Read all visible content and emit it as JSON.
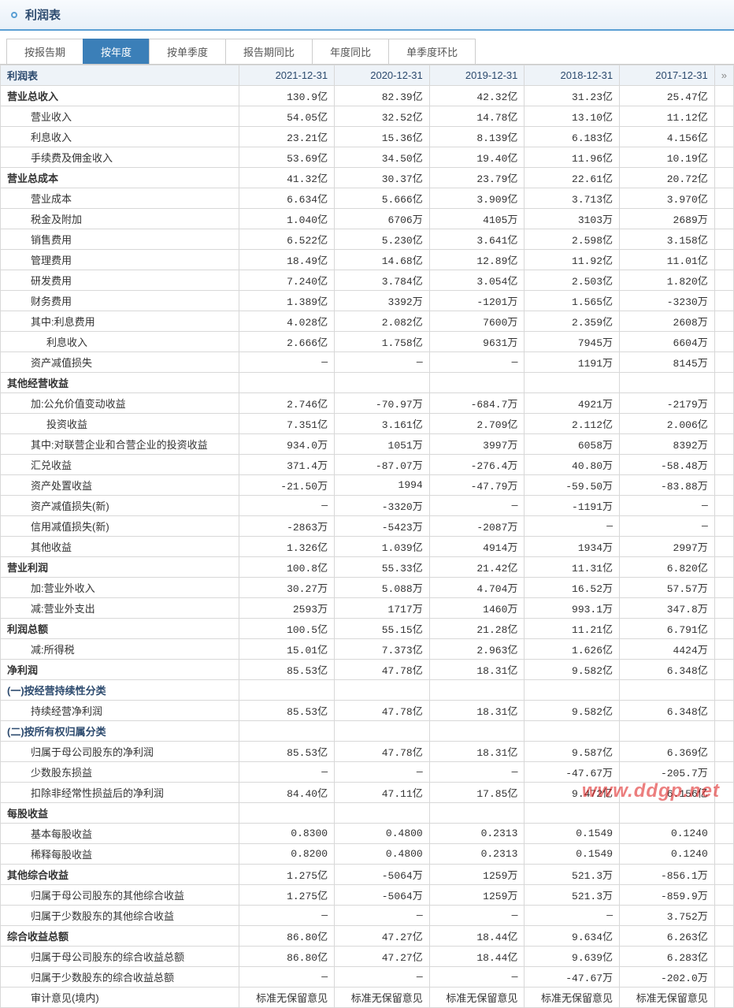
{
  "page_title": "利润表",
  "tabs": [
    "按报告期",
    "按年度",
    "按单季度",
    "报告期同比",
    "年度同比",
    "单季度环比"
  ],
  "tab_active_index": 1,
  "table_header_label": "利润表",
  "columns": [
    "2021-12-31",
    "2020-12-31",
    "2019-12-31",
    "2018-12-31",
    "2017-12-31"
  ],
  "watermark": "www.ddgp.net",
  "rows": [
    {
      "k": "bold",
      "l": "营业总收入",
      "v": [
        "130.9亿",
        "82.39亿",
        "42.32亿",
        "31.23亿",
        "25.47亿"
      ]
    },
    {
      "k": "",
      "i": 1,
      "l": "营业收入",
      "v": [
        "54.05亿",
        "32.52亿",
        "14.78亿",
        "13.10亿",
        "11.12亿"
      ]
    },
    {
      "k": "",
      "i": 1,
      "l": "利息收入",
      "v": [
        "23.21亿",
        "15.36亿",
        "8.139亿",
        "6.183亿",
        "4.156亿"
      ]
    },
    {
      "k": "",
      "i": 1,
      "l": "手续费及佣金收入",
      "v": [
        "53.69亿",
        "34.50亿",
        "19.40亿",
        "11.96亿",
        "10.19亿"
      ]
    },
    {
      "k": "bold",
      "l": "营业总成本",
      "v": [
        "41.32亿",
        "30.37亿",
        "23.79亿",
        "22.61亿",
        "20.72亿"
      ]
    },
    {
      "k": "",
      "i": 1,
      "l": "营业成本",
      "v": [
        "6.634亿",
        "5.666亿",
        "3.909亿",
        "3.713亿",
        "3.970亿"
      ]
    },
    {
      "k": "",
      "i": 1,
      "l": "税金及附加",
      "v": [
        "1.040亿",
        "6706万",
        "4105万",
        "3103万",
        "2689万"
      ]
    },
    {
      "k": "",
      "i": 1,
      "l": "销售费用",
      "v": [
        "6.522亿",
        "5.230亿",
        "3.641亿",
        "2.598亿",
        "3.158亿"
      ]
    },
    {
      "k": "",
      "i": 1,
      "l": "管理费用",
      "v": [
        "18.49亿",
        "14.68亿",
        "12.89亿",
        "11.92亿",
        "11.01亿"
      ]
    },
    {
      "k": "",
      "i": 1,
      "l": "研发费用",
      "v": [
        "7.240亿",
        "3.784亿",
        "3.054亿",
        "2.503亿",
        "1.820亿"
      ]
    },
    {
      "k": "",
      "i": 1,
      "l": "财务费用",
      "v": [
        "1.389亿",
        "3392万",
        "-1201万",
        "1.565亿",
        "-3230万"
      ]
    },
    {
      "k": "",
      "i": 1,
      "l": "其中:利息费用",
      "v": [
        "4.028亿",
        "2.082亿",
        "7600万",
        "2.359亿",
        "2608万"
      ]
    },
    {
      "k": "",
      "i": 2,
      "l": "利息收入",
      "v": [
        "2.666亿",
        "1.758亿",
        "9631万",
        "7945万",
        "6604万"
      ]
    },
    {
      "k": "",
      "i": 1,
      "l": "资产减值损失",
      "v": [
        "—",
        "—",
        "—",
        "1191万",
        "8145万"
      ]
    },
    {
      "k": "bold",
      "l": "其他经营收益",
      "v": [
        "",
        "",
        "",
        "",
        ""
      ]
    },
    {
      "k": "",
      "i": 1,
      "l": "加:公允价值变动收益",
      "v": [
        "2.746亿",
        "-70.97万",
        "-684.7万",
        "4921万",
        "-2179万"
      ]
    },
    {
      "k": "",
      "i": 2,
      "l": "投资收益",
      "v": [
        "7.351亿",
        "3.161亿",
        "2.709亿",
        "2.112亿",
        "2.006亿"
      ]
    },
    {
      "k": "",
      "i": 1,
      "l": "其中:对联营企业和合营企业的投资收益",
      "v": [
        "934.0万",
        "1051万",
        "3997万",
        "6058万",
        "8392万"
      ]
    },
    {
      "k": "",
      "i": 1,
      "l": "汇兑收益",
      "v": [
        "371.4万",
        "-87.07万",
        "-276.4万",
        "40.80万",
        "-58.48万"
      ]
    },
    {
      "k": "",
      "i": 1,
      "l": "资产处置收益",
      "v": [
        "-21.50万",
        "1994",
        "-47.79万",
        "-59.50万",
        "-83.88万"
      ]
    },
    {
      "k": "",
      "i": 1,
      "l": "资产减值损失(新)",
      "v": [
        "—",
        "-3320万",
        "—",
        "-1191万",
        "—"
      ]
    },
    {
      "k": "",
      "i": 1,
      "l": "信用减值损失(新)",
      "v": [
        "-2863万",
        "-5423万",
        "-2087万",
        "—",
        "—"
      ]
    },
    {
      "k": "",
      "i": 1,
      "l": "其他收益",
      "v": [
        "1.326亿",
        "1.039亿",
        "4914万",
        "1934万",
        "2997万"
      ]
    },
    {
      "k": "bold",
      "l": "营业利润",
      "v": [
        "100.8亿",
        "55.33亿",
        "21.42亿",
        "11.31亿",
        "6.820亿"
      ]
    },
    {
      "k": "",
      "i": 1,
      "l": "加:营业外收入",
      "v": [
        "30.27万",
        "5.088万",
        "4.704万",
        "16.52万",
        "57.57万"
      ]
    },
    {
      "k": "",
      "i": 1,
      "l": "减:营业外支出",
      "v": [
        "2593万",
        "1717万",
        "1460万",
        "993.1万",
        "347.8万"
      ]
    },
    {
      "k": "bold",
      "l": "利润总额",
      "v": [
        "100.5亿",
        "55.15亿",
        "21.28亿",
        "11.21亿",
        "6.791亿"
      ]
    },
    {
      "k": "",
      "i": 1,
      "l": "减:所得税",
      "v": [
        "15.01亿",
        "7.373亿",
        "2.963亿",
        "1.626亿",
        "4424万"
      ]
    },
    {
      "k": "bold",
      "l": "净利润",
      "v": [
        "85.53亿",
        "47.78亿",
        "18.31亿",
        "9.582亿",
        "6.348亿"
      ]
    },
    {
      "k": "section",
      "l": "(一)按经营持续性分类",
      "v": [
        "",
        "",
        "",
        "",
        ""
      ]
    },
    {
      "k": "",
      "i": 1,
      "l": "持续经营净利润",
      "v": [
        "85.53亿",
        "47.78亿",
        "18.31亿",
        "9.582亿",
        "6.348亿"
      ]
    },
    {
      "k": "section",
      "l": "(二)按所有权归属分类",
      "v": [
        "",
        "",
        "",
        "",
        ""
      ]
    },
    {
      "k": "",
      "i": 1,
      "l": "归属于母公司股东的净利润",
      "v": [
        "85.53亿",
        "47.78亿",
        "18.31亿",
        "9.587亿",
        "6.369亿"
      ]
    },
    {
      "k": "",
      "i": 1,
      "l": "少数股东损益",
      "v": [
        "—",
        "—",
        "—",
        "-47.67万",
        "-205.7万"
      ]
    },
    {
      "k": "",
      "i": 1,
      "l": "扣除非经常性损益后的净利润",
      "v": [
        "84.40亿",
        "47.11亿",
        "17.85亿",
        "9.472亿",
        "6.156亿"
      ]
    },
    {
      "k": "bold",
      "l": "每股收益",
      "v": [
        "",
        "",
        "",
        "",
        ""
      ]
    },
    {
      "k": "",
      "i": 1,
      "l": "基本每股收益",
      "v": [
        "0.8300",
        "0.4800",
        "0.2313",
        "0.1549",
        "0.1240"
      ]
    },
    {
      "k": "",
      "i": 1,
      "l": "稀释每股收益",
      "v": [
        "0.8200",
        "0.4800",
        "0.2313",
        "0.1549",
        "0.1240"
      ]
    },
    {
      "k": "bold",
      "l": "其他综合收益",
      "v": [
        "1.275亿",
        "-5064万",
        "1259万",
        "521.3万",
        "-856.1万"
      ]
    },
    {
      "k": "",
      "i": 1,
      "l": "归属于母公司股东的其他综合收益",
      "v": [
        "1.275亿",
        "-5064万",
        "1259万",
        "521.3万",
        "-859.9万"
      ]
    },
    {
      "k": "",
      "i": 1,
      "l": "归属于少数股东的其他综合收益",
      "v": [
        "—",
        "—",
        "—",
        "—",
        "3.752万"
      ]
    },
    {
      "k": "bold",
      "l": "综合收益总额",
      "v": [
        "86.80亿",
        "47.27亿",
        "18.44亿",
        "9.634亿",
        "6.263亿"
      ]
    },
    {
      "k": "",
      "i": 1,
      "l": "归属于母公司股东的综合收益总额",
      "v": [
        "86.80亿",
        "47.27亿",
        "18.44亿",
        "9.639亿",
        "6.283亿"
      ]
    },
    {
      "k": "",
      "i": 1,
      "l": "归属于少数股东的综合收益总额",
      "v": [
        "—",
        "—",
        "—",
        "-47.67万",
        "-202.0万"
      ]
    },
    {
      "k": "",
      "i": 1,
      "l": "审计意见(境内)",
      "v": [
        "标准无保留意见",
        "标准无保留意见",
        "标准无保留意见",
        "标准无保留意见",
        "标准无保留意见"
      ]
    }
  ]
}
